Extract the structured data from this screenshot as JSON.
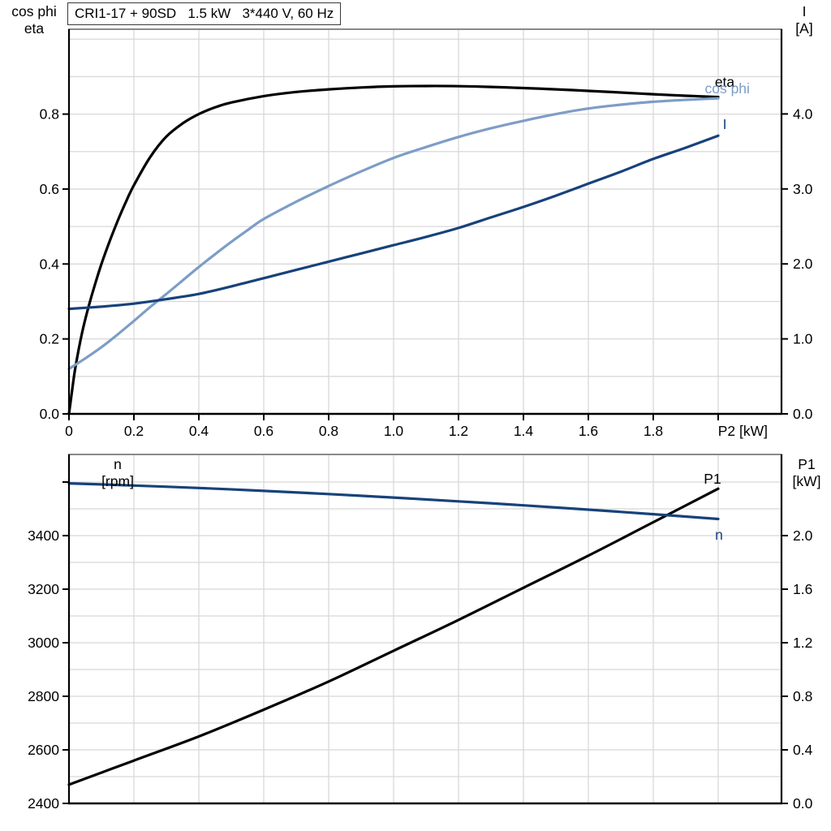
{
  "title_box": {
    "text": "CRI1-17 + 90SD   1.5 kW   3*440 V, 60 Hz"
  },
  "colors": {
    "black": "#000000",
    "dark_blue": "#17427B",
    "light_blue": "#7D9DC6",
    "grid": "#D8D8D8",
    "panel_border": "#8A8A8A",
    "background": "#FFFFFF"
  },
  "chart_data": [
    {
      "id": "motor-curves-panel",
      "type": "line",
      "x": {
        "label": "P2 [kW]",
        "min": 0,
        "max": 2.195,
        "ticks": [
          0,
          0.2,
          0.4,
          0.6,
          0.8,
          1.0,
          1.2,
          1.4,
          1.6,
          1.8,
          2.0
        ],
        "tick_labels": [
          "0",
          "0.2",
          "0.4",
          "0.6",
          "0.8",
          "1.0",
          "1.2",
          "1.4",
          "1.6",
          "1.8",
          ""
        ],
        "grid_step": 0.2,
        "grid_max": 2.0
      },
      "left_axis": {
        "header_lines": [
          "cos phi",
          "eta"
        ],
        "min": 0,
        "max": 1.0265,
        "ticks": [
          0,
          0.2,
          0.4,
          0.6,
          0.8
        ],
        "tick_labels": [
          "0.0",
          "0.2",
          "0.4",
          "0.6",
          "0.8"
        ],
        "grid_step": 0.1,
        "grid_max": 1.0
      },
      "right_axis": {
        "header_lines": [
          "I",
          "[A]"
        ],
        "min": 0,
        "max": 5.13,
        "ticks": [
          0,
          1,
          2,
          3,
          4
        ],
        "tick_labels": [
          "0.0",
          "1.0",
          "2.0",
          "3.0",
          "4.0"
        ]
      },
      "series": [
        {
          "name": "eta",
          "axis": "left",
          "color_key": "black",
          "label": {
            "text": "eta",
            "x": 2.02,
            "y": 0.873
          },
          "points": [
            [
              0,
              0
            ],
            [
              0.01,
              0.065
            ],
            [
              0.02,
              0.125
            ],
            [
              0.04,
              0.215
            ],
            [
              0.06,
              0.285
            ],
            [
              0.08,
              0.345
            ],
            [
              0.1,
              0.4
            ],
            [
              0.125,
              0.46
            ],
            [
              0.15,
              0.515
            ],
            [
              0.175,
              0.565
            ],
            [
              0.2,
              0.61
            ],
            [
              0.25,
              0.685
            ],
            [
              0.3,
              0.74
            ],
            [
              0.35,
              0.775
            ],
            [
              0.4,
              0.8
            ],
            [
              0.45,
              0.818
            ],
            [
              0.5,
              0.831
            ],
            [
              0.6,
              0.848
            ],
            [
              0.7,
              0.859
            ],
            [
              0.8,
              0.866
            ],
            [
              0.9,
              0.871
            ],
            [
              1.0,
              0.874
            ],
            [
              1.1,
              0.875
            ],
            [
              1.2,
              0.8745
            ],
            [
              1.3,
              0.8725
            ],
            [
              1.4,
              0.8695
            ],
            [
              1.5,
              0.866
            ],
            [
              1.6,
              0.862
            ],
            [
              1.7,
              0.8575
            ],
            [
              1.8,
              0.853
            ],
            [
              1.9,
              0.849
            ],
            [
              2.0,
              0.8455
            ]
          ]
        },
        {
          "name": "cos phi",
          "axis": "left",
          "color_key": "light_blue",
          "label": {
            "text": "cos phi",
            "x": 2.028,
            "y": 0.855
          },
          "points": [
            [
              0,
              0.12
            ],
            [
              0.05,
              0.148
            ],
            [
              0.1,
              0.178
            ],
            [
              0.15,
              0.212
            ],
            [
              0.2,
              0.248
            ],
            [
              0.25,
              0.285
            ],
            [
              0.3,
              0.32
            ],
            [
              0.35,
              0.356
            ],
            [
              0.4,
              0.392
            ],
            [
              0.45,
              0.426
            ],
            [
              0.5,
              0.459
            ],
            [
              0.55,
              0.49
            ],
            [
              0.6,
              0.52
            ],
            [
              0.7,
              0.566
            ],
            [
              0.8,
              0.608
            ],
            [
              0.9,
              0.647
            ],
            [
              1.0,
              0.683
            ],
            [
              1.1,
              0.712
            ],
            [
              1.2,
              0.739
            ],
            [
              1.3,
              0.762
            ],
            [
              1.4,
              0.782
            ],
            [
              1.5,
              0.8
            ],
            [
              1.6,
              0.815
            ],
            [
              1.7,
              0.825
            ],
            [
              1.8,
              0.833
            ],
            [
              1.9,
              0.838
            ],
            [
              2.0,
              0.842
            ]
          ]
        },
        {
          "name": "I",
          "axis": "right",
          "color_key": "dark_blue",
          "label": {
            "text": "I",
            "x": 2.02,
            "y": 3.8
          },
          "points": [
            [
              0,
              1.4
            ],
            [
              0.1,
              1.43
            ],
            [
              0.2,
              1.47
            ],
            [
              0.3,
              1.53
            ],
            [
              0.4,
              1.6
            ],
            [
              0.5,
              1.7
            ],
            [
              0.6,
              1.81
            ],
            [
              0.7,
              1.92
            ],
            [
              0.8,
              2.03
            ],
            [
              0.9,
              2.14
            ],
            [
              1.0,
              2.25
            ],
            [
              1.1,
              2.36
            ],
            [
              1.2,
              2.48
            ],
            [
              1.3,
              2.62
            ],
            [
              1.4,
              2.76
            ],
            [
              1.5,
              2.91
            ],
            [
              1.6,
              3.07
            ],
            [
              1.7,
              3.23
            ],
            [
              1.8,
              3.4
            ],
            [
              1.9,
              3.55
            ],
            [
              2.0,
              3.71
            ]
          ]
        }
      ]
    },
    {
      "id": "speed-power-panel",
      "type": "line",
      "x": {
        "label": "",
        "min": 0,
        "max": 2.195,
        "ticks": [],
        "tick_labels": [],
        "grid_step": 0.2,
        "grid_max": 2.0
      },
      "left_axis": {
        "header_lines": [
          "n",
          "[rpm]"
        ],
        "min": 2400,
        "max": 3703,
        "ticks": [
          2400,
          2600,
          2800,
          3000,
          3200,
          3400,
          3600
        ],
        "tick_labels": [
          "2400",
          "2600",
          "2800",
          "3000",
          "3200",
          "3400",
          ""
        ],
        "grid_step": 100,
        "grid_max": 3600
      },
      "right_axis": {
        "header_lines": [
          "P1",
          "[kW]"
        ],
        "min": 0,
        "max": 2.606,
        "ticks": [
          0,
          0.4,
          0.8,
          1.2,
          1.6,
          2.0
        ],
        "tick_labels": [
          "0.0",
          "0.4",
          "0.8",
          "1.2",
          "1.6",
          "2.0"
        ]
      },
      "series": [
        {
          "name": "P1",
          "axis": "right",
          "color_key": "black",
          "label": {
            "text": "P1",
            "x": 1.9825,
            "y": 2.388
          },
          "points": [
            [
              0,
              0.14
            ],
            [
              0.2,
              0.32
            ],
            [
              0.4,
              0.5
            ],
            [
              0.6,
              0.7
            ],
            [
              0.8,
              0.91
            ],
            [
              1.0,
              1.14
            ],
            [
              1.2,
              1.37
            ],
            [
              1.4,
              1.61
            ],
            [
              1.6,
              1.85
            ],
            [
              1.8,
              2.1
            ],
            [
              2.0,
              2.35
            ]
          ]
        },
        {
          "name": "n",
          "axis": "left",
          "color_key": "dark_blue",
          "label": {
            "text": "n",
            "x": 2.0025,
            "y": 3385
          },
          "points": [
            [
              0,
              3595
            ],
            [
              0.2,
              3587
            ],
            [
              0.4,
              3578
            ],
            [
              0.6,
              3567
            ],
            [
              0.8,
              3555
            ],
            [
              1.0,
              3542
            ],
            [
              1.2,
              3528
            ],
            [
              1.4,
              3513
            ],
            [
              1.6,
              3497
            ],
            [
              1.8,
              3480
            ],
            [
              2.0,
              3462
            ]
          ]
        }
      ]
    }
  ]
}
